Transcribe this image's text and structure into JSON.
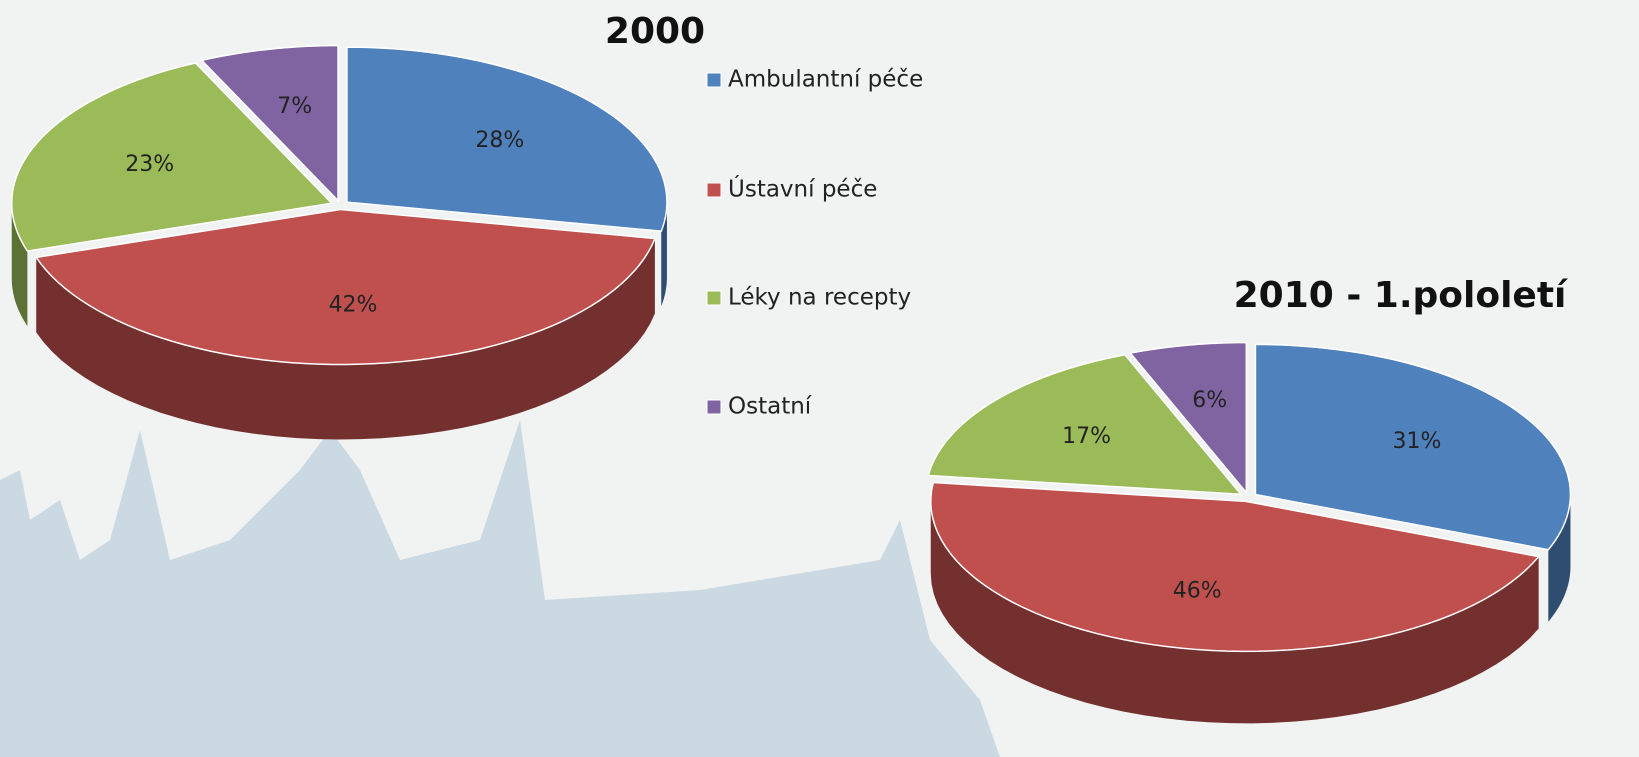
{
  "legend": {
    "items": [
      "Ambulantní péče",
      "Ústavní péče",
      "Léky na recepty",
      "Ostatní"
    ],
    "colors": [
      "#4f81bd",
      "#c0504d",
      "#9bbb59",
      "#8064a2"
    ]
  },
  "chart_data": [
    {
      "type": "pie",
      "title": "2000",
      "values": [
        28,
        42,
        23,
        7
      ],
      "value_labels": [
        "28%",
        "42%",
        "23%",
        "7%"
      ]
    },
    {
      "type": "pie",
      "title": "2010 - 1.pololetí",
      "values": [
        31,
        46,
        17,
        6
      ],
      "value_labels": [
        "31%",
        "46%",
        "17%",
        "6%"
      ]
    }
  ]
}
